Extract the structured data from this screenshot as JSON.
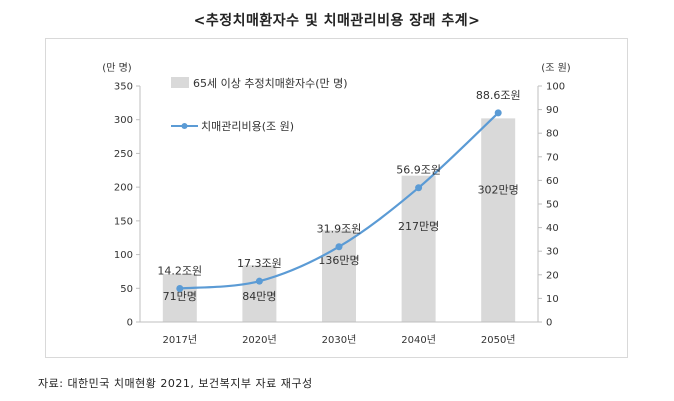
{
  "title": "<추정치매환자수 및 치매관리비용 장래 추계>",
  "source": "자료: 대한민국 치매현황 2021, 보건복지부 자료 재구성",
  "chart_data": {
    "type": "bar",
    "categories": [
      "2017년",
      "2020년",
      "2030년",
      "2040년",
      "2050년"
    ],
    "y_left_unit": "(만 명)",
    "y_right_unit": "(조 원)",
    "y_left_range": [
      0,
      350
    ],
    "y_left_ticks": [
      "0",
      "50",
      "100",
      "150",
      "200",
      "250",
      "300",
      "350"
    ],
    "y_right_range": [
      0,
      100
    ],
    "y_right_ticks": [
      "0",
      "10",
      "20",
      "30",
      "40",
      "50",
      "60",
      "70",
      "80",
      "90",
      "100"
    ],
    "series": [
      {
        "name": "65세 이상 추정치매환자수(만 명)",
        "type": "bar",
        "axis": "left",
        "color": "#d9d9d9",
        "values": [
          71,
          84,
          136,
          217,
          302
        ],
        "labels": [
          "71만명",
          "84만명",
          "136만명",
          "217만명",
          "302만명"
        ]
      },
      {
        "name": "치매관리비용(조 원)",
        "type": "line",
        "axis": "right",
        "color": "#5b9bd5",
        "values": [
          14.2,
          17.3,
          31.9,
          56.9,
          88.6
        ],
        "labels": [
          "14.2조원",
          "17.3조원",
          "31.9조원",
          "56.9조원",
          "88.6조원"
        ]
      }
    ],
    "legend_position": "top-left"
  }
}
